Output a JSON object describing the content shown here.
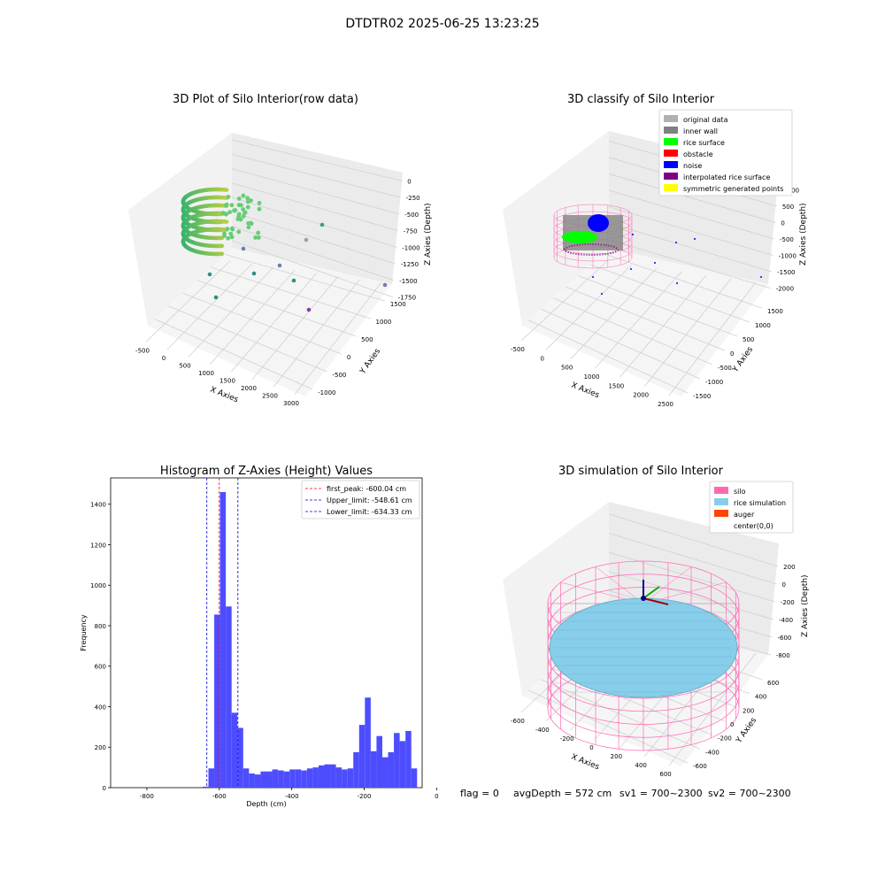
{
  "suptitle": "DTDTR02 2025-06-25 13:23:25",
  "footer": {
    "flag": "flag = 0",
    "avg": "avgDepth = 572 cm",
    "sv1": "sv1 = 700~2300",
    "sv2": "sv2 = 700~2300"
  },
  "chart_data": [
    {
      "type": "scatter",
      "title": "3D Plot of Silo Interior(row data)",
      "xlabel": "X Axies",
      "ylabel": "Y Axies",
      "zlabel": "Z Axies (Depth)",
      "x_ticks": [
        "-500",
        "0",
        "500",
        "1000",
        "1500",
        "2000",
        "2500",
        "3000"
      ],
      "y_ticks": [
        "-1000",
        "-500",
        "0",
        "500",
        "1000",
        "1500"
      ],
      "z_ticks": [
        "0",
        "-250",
        "-500",
        "-750",
        "-1000",
        "-1250",
        "-1500",
        "-1750"
      ]
    },
    {
      "type": "scatter",
      "title": "3D classify of Silo Interior",
      "xlabel": "X Axies",
      "ylabel": "Y Axies",
      "zlabel": "Z Axies (Depth)",
      "x_ticks": [
        "-500",
        "0",
        "500",
        "1000",
        "1500",
        "2000",
        "2500"
      ],
      "y_ticks": [
        "-1500",
        "-1000",
        "-500",
        "0",
        "500",
        "1000",
        "1500"
      ],
      "z_ticks": [
        "1000",
        "500",
        "0",
        "-500",
        "-1000",
        "-1500",
        "-2000"
      ],
      "legend": [
        {
          "label": "original data",
          "color": "#b0b0b0"
        },
        {
          "label": "inner wall",
          "color": "#808080"
        },
        {
          "label": "rice surface",
          "color": "#00ff00"
        },
        {
          "label": "obstacle",
          "color": "#ff0000"
        },
        {
          "label": "noise",
          "color": "#0000ff"
        },
        {
          "label": "interpolated rice surface",
          "color": "#800080"
        },
        {
          "label": "symmetric generated points",
          "color": "#ffff00"
        }
      ]
    },
    {
      "type": "bar",
      "title": "Histogram of Z-Axies (Height) Values",
      "xlabel": "Depth (cm)",
      "ylabel": "Frequency",
      "xlim": [
        -900,
        -40
      ],
      "ylim": [
        0,
        1530
      ],
      "x_ticks": [
        -800,
        -600,
        -400,
        -200,
        0
      ],
      "y_ticks": [
        0,
        200,
        400,
        600,
        800,
        1000,
        1200,
        1400
      ],
      "bin_width": 16,
      "bins": [
        {
          "x0": -646,
          "v": 5
        },
        {
          "x0": -630,
          "v": 95
        },
        {
          "x0": -614,
          "v": 855
        },
        {
          "x0": -598,
          "v": 1460
        },
        {
          "x0": -582,
          "v": 895
        },
        {
          "x0": -566,
          "v": 370
        },
        {
          "x0": -550,
          "v": 295
        },
        {
          "x0": -534,
          "v": 95
        },
        {
          "x0": -518,
          "v": 70
        },
        {
          "x0": -502,
          "v": 65
        },
        {
          "x0": -486,
          "v": 80
        },
        {
          "x0": -470,
          "v": 80
        },
        {
          "x0": -454,
          "v": 90
        },
        {
          "x0": -438,
          "v": 85
        },
        {
          "x0": -422,
          "v": 80
        },
        {
          "x0": -406,
          "v": 90
        },
        {
          "x0": -390,
          "v": 90
        },
        {
          "x0": -374,
          "v": 85
        },
        {
          "x0": -358,
          "v": 95
        },
        {
          "x0": -342,
          "v": 100
        },
        {
          "x0": -326,
          "v": 110
        },
        {
          "x0": -310,
          "v": 115
        },
        {
          "x0": -294,
          "v": 115
        },
        {
          "x0": -278,
          "v": 100
        },
        {
          "x0": -262,
          "v": 90
        },
        {
          "x0": -246,
          "v": 95
        },
        {
          "x0": -230,
          "v": 175
        },
        {
          "x0": -214,
          "v": 310
        },
        {
          "x0": -198,
          "v": 445
        },
        {
          "x0": -182,
          "v": 180
        },
        {
          "x0": -166,
          "v": 255
        },
        {
          "x0": -150,
          "v": 150
        },
        {
          "x0": -134,
          "v": 175
        },
        {
          "x0": -118,
          "v": 270
        },
        {
          "x0": -102,
          "v": 230
        },
        {
          "x0": -86,
          "v": 280
        },
        {
          "x0": -70,
          "v": 95
        }
      ],
      "vlines": [
        {
          "x": -600.04,
          "color": "#ff0000",
          "label": "first_peak: -600.04 cm"
        },
        {
          "x": -548.61,
          "color": "#0000cc",
          "label": "Upper_limit: -548.61 cm"
        },
        {
          "x": -634.33,
          "color": "#0000cc",
          "label": "Lower_limit: -634.33 cm"
        }
      ],
      "bar_color": "#4d4dff"
    },
    {
      "type": "scatter",
      "title": "3D simulation of Silo Interior",
      "xlabel": "X Axies",
      "ylabel": "Y Axies",
      "zlabel": "Z Axies (Depth)",
      "x_ticks": [
        "-600",
        "-400",
        "-200",
        "0",
        "200",
        "400",
        "600"
      ],
      "y_ticks": [
        "-600",
        "-400",
        "-200",
        "0",
        "200",
        "400",
        "600"
      ],
      "z_ticks": [
        "200",
        "0",
        "-200",
        "-400",
        "-600",
        "-800"
      ],
      "legend": [
        {
          "label": "silo",
          "color": "#ff69b4"
        },
        {
          "label": "rice simulation",
          "color": "#87ceeb"
        },
        {
          "label": "auger",
          "color": "#ff4500"
        },
        {
          "label": "center(0,0)",
          "color": ""
        }
      ]
    }
  ]
}
